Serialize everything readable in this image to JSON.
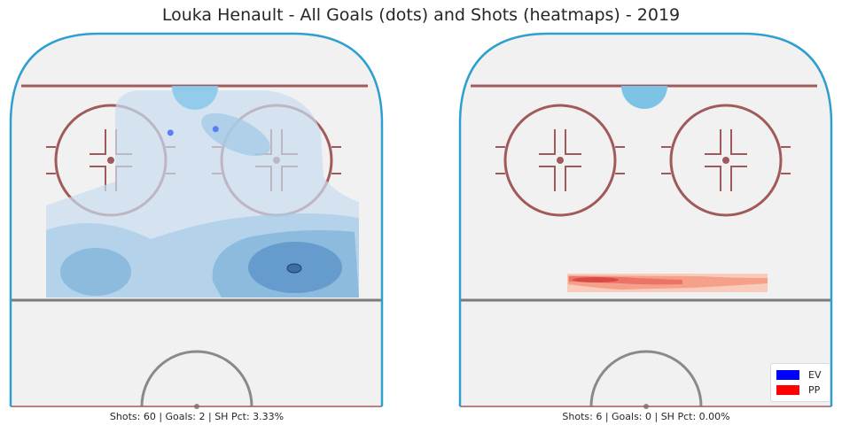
{
  "title": "Louka Henault - All Goals (dots) and Shots (heatmaps) - 2019",
  "panels": [
    {
      "caption": "Shots: 60 | Goals: 2 | SH Pct: 3.33%"
    },
    {
      "caption": "Shots: 6 | Goals: 0 | SH Pct: 0.00%"
    }
  ],
  "legend": [
    {
      "label": "EV",
      "color": "#0000ff"
    },
    {
      "label": "PP",
      "color": "#ff0000"
    }
  ],
  "colors": {
    "board": "#2f9fd0",
    "ice": "#f1f1f1",
    "goal_line": "#a05a5a",
    "faceoff": "#a05a5a",
    "blue_line": "#7a7a7a",
    "center_circle": "#8a8a8a",
    "ev_heatmap": "#2b83c6",
    "pp_heatmap": "#e0453a",
    "goal_dots": "#5b7ff0"
  },
  "chart_data": [
    {
      "type": "heatmap",
      "panel": "left",
      "situation": "EV",
      "shots": 60,
      "goals": 2,
      "sh_pct": 3.33,
      "goal_dots": [
        {
          "x": 76,
          "y": -7
        },
        {
          "x": 77,
          "y": 5
        }
      ]
    },
    {
      "type": "heatmap",
      "panel": "right",
      "situation": "PP",
      "shots": 6,
      "goals": 0,
      "sh_pct": 0.0,
      "goal_dots": []
    }
  ]
}
